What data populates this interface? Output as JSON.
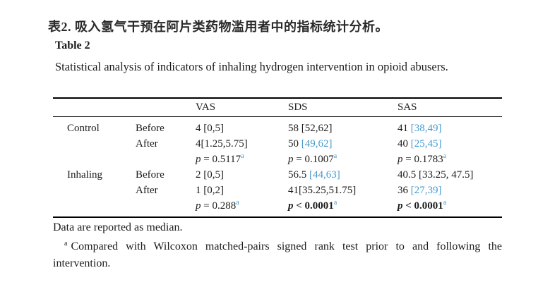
{
  "header": {
    "title_zh": "表2. 吸入氢气干预在阿片类药物滥用者中的指标统计分析。",
    "table_label": "Table 2",
    "caption": "Statistical analysis of indicators of inhaling hydrogen intervention in opioid abusers."
  },
  "table": {
    "col_headers": [
      "VAS",
      "SDS",
      "SAS"
    ],
    "row_group_labels": [
      "Control",
      "Inhaling"
    ],
    "time_labels": [
      "Before",
      "After"
    ],
    "rows": [
      {
        "group": "Control",
        "time": "Before",
        "cells": [
          [
            {
              "t": "4 [0,5]"
            }
          ],
          [
            {
              "t": "58 [52,62]"
            }
          ],
          [
            {
              "t": "41 "
            },
            {
              "t": "[38,49]",
              "color": "blue"
            }
          ]
        ]
      },
      {
        "group": "",
        "time": "After",
        "cells": [
          [
            {
              "t": "4[1.25,5.75]"
            }
          ],
          [
            {
              "t": "50 "
            },
            {
              "t": "[49,62]",
              "color": "blue"
            }
          ],
          [
            {
              "t": "40 "
            },
            {
              "t": "[25,45]",
              "color": "blue"
            }
          ]
        ]
      },
      {
        "group": "",
        "time": "",
        "cells": [
          [
            {
              "t": "p",
              "italic": true
            },
            {
              "t": " = 0.5117"
            },
            {
              "t": "a",
              "sup": true,
              "color": "blue"
            }
          ],
          [
            {
              "t": "p",
              "italic": true
            },
            {
              "t": " = 0.1007"
            },
            {
              "t": "a",
              "sup": true,
              "color": "blue"
            }
          ],
          [
            {
              "t": "p",
              "italic": true
            },
            {
              "t": " = 0.1783"
            },
            {
              "t": "a",
              "sup": true,
              "color": "blue"
            }
          ]
        ]
      },
      {
        "group": "Inhaling",
        "time": "Before",
        "cells": [
          [
            {
              "t": "2 [0,5]"
            }
          ],
          [
            {
              "t": "56.5 "
            },
            {
              "t": "[44,63]",
              "color": "blue"
            }
          ],
          [
            {
              "t": "40.5 [33.25, 47.5]"
            }
          ]
        ]
      },
      {
        "group": "",
        "time": "After",
        "cells": [
          [
            {
              "t": "1 [0,2]"
            }
          ],
          [
            {
              "t": "41[35.25,51.75]"
            }
          ],
          [
            {
              "t": "36 "
            },
            {
              "t": "[27,39]",
              "color": "blue"
            }
          ]
        ]
      },
      {
        "group": "",
        "time": "",
        "cells": [
          [
            {
              "t": "p",
              "italic": true
            },
            {
              "t": " = 0.288"
            },
            {
              "t": "a",
              "sup": true,
              "color": "blue"
            }
          ],
          [
            {
              "t": "p",
              "italic": true,
              "bold": true
            },
            {
              "t": " < 0.0001",
              "bold": true
            },
            {
              "t": "a",
              "sup": true,
              "color": "blue"
            }
          ],
          [
            {
              "t": "p",
              "italic": true,
              "bold": true
            },
            {
              "t": " < 0.0001",
              "bold": true
            },
            {
              "t": "a",
              "sup": true,
              "color": "blue"
            }
          ]
        ]
      }
    ]
  },
  "footer": {
    "median_note": "Data are reported as median.",
    "footnote_marker": "a",
    "footnote_text": "Compared with Wilcoxon matched-pairs signed rank test prior to and following the intervention."
  },
  "colors": {
    "accent_blue": "#4699cf",
    "text": "#1c1c1c",
    "rule": "#000000"
  }
}
